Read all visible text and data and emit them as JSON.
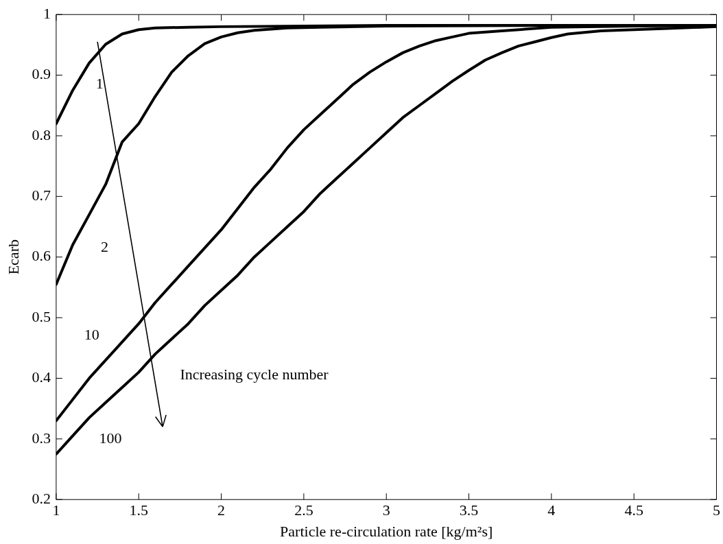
{
  "chart_data": {
    "type": "line",
    "xlabel": "Particle re-circulation rate [kg/m²s]",
    "ylabel": "Ecarb",
    "xlim": [
      1,
      5
    ],
    "ylim": [
      0.2,
      1
    ],
    "xticks": [
      1,
      1.5,
      2,
      2.5,
      3,
      3.5,
      4,
      4.5,
      5
    ],
    "yticks": [
      0.2,
      0.3,
      0.4,
      0.5,
      0.6,
      0.7,
      0.8,
      0.9,
      1
    ],
    "grid": false,
    "legend": false,
    "marker": "none",
    "line_style": "solid",
    "annotations": [
      "Increasing cycle number"
    ],
    "series": [
      {
        "name": "1",
        "color": "#000000",
        "x": [
          1,
          1.1,
          1.2,
          1.3,
          1.4,
          1.5,
          1.6,
          1.8,
          2,
          2.5,
          3,
          4,
          5
        ],
        "values": [
          0.82,
          0.875,
          0.92,
          0.951,
          0.968,
          0.975,
          0.978,
          0.979,
          0.98,
          0.981,
          0.982,
          0.982,
          0.982
        ]
      },
      {
        "name": "2",
        "color": "#000000",
        "x": [
          1,
          1.1,
          1.2,
          1.3,
          1.4,
          1.5,
          1.6,
          1.7,
          1.8,
          1.9,
          2,
          2.1,
          2.2,
          2.4,
          2.6,
          3,
          4,
          5
        ],
        "values": [
          0.555,
          0.62,
          0.67,
          0.72,
          0.79,
          0.82,
          0.865,
          0.905,
          0.932,
          0.952,
          0.963,
          0.97,
          0.974,
          0.978,
          0.979,
          0.981,
          0.982,
          0.982
        ]
      },
      {
        "name": "10",
        "color": "#000000",
        "x": [
          1,
          1.1,
          1.2,
          1.3,
          1.4,
          1.5,
          1.6,
          1.7,
          1.8,
          1.9,
          2,
          2.1,
          2.2,
          2.3,
          2.4,
          2.5,
          2.6,
          2.7,
          2.8,
          2.9,
          3,
          3.1,
          3.2,
          3.3,
          3.4,
          3.5,
          3.7,
          4,
          4.5,
          5
        ],
        "values": [
          0.33,
          0.365,
          0.4,
          0.43,
          0.46,
          0.49,
          0.525,
          0.555,
          0.585,
          0.615,
          0.645,
          0.68,
          0.715,
          0.745,
          0.78,
          0.81,
          0.835,
          0.86,
          0.885,
          0.905,
          0.922,
          0.937,
          0.948,
          0.957,
          0.963,
          0.969,
          0.973,
          0.979,
          0.981,
          0.982
        ]
      },
      {
        "name": "100",
        "color": "#000000",
        "x": [
          1,
          1.1,
          1.2,
          1.3,
          1.4,
          1.5,
          1.6,
          1.7,
          1.8,
          1.9,
          2,
          2.1,
          2.2,
          2.3,
          2.4,
          2.5,
          2.6,
          2.7,
          2.8,
          2.9,
          3,
          3.1,
          3.2,
          3.3,
          3.4,
          3.5,
          3.6,
          3.7,
          3.8,
          3.9,
          4,
          4.1,
          4.3,
          4.5,
          4.7,
          5
        ],
        "values": [
          0.275,
          0.305,
          0.335,
          0.36,
          0.385,
          0.41,
          0.44,
          0.465,
          0.49,
          0.52,
          0.545,
          0.57,
          0.6,
          0.625,
          0.65,
          0.675,
          0.705,
          0.73,
          0.755,
          0.78,
          0.805,
          0.83,
          0.85,
          0.87,
          0.89,
          0.908,
          0.925,
          0.937,
          0.948,
          0.955,
          0.962,
          0.968,
          0.973,
          0.975,
          0.977,
          0.98
        ]
      }
    ]
  }
}
